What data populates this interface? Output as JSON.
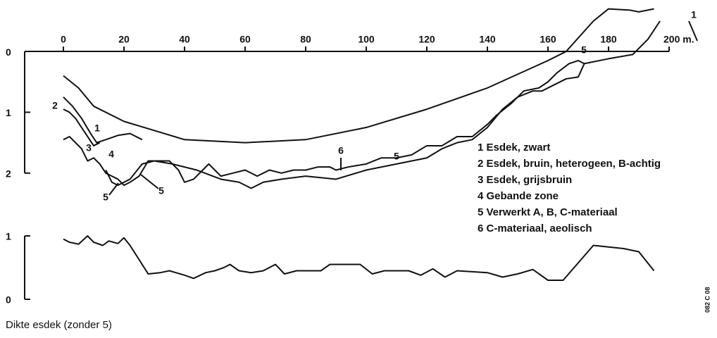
{
  "chart_data": [
    {
      "type": "line",
      "xlim": [
        0,
        200
      ],
      "xticks": [
        0,
        20,
        40,
        60,
        80,
        100,
        120,
        140,
        160,
        180,
        {
          "value": 200,
          "label": "200 m."
        }
      ],
      "ylim": [
        2.28,
        -0.73
      ],
      "yticks": [
        0,
        1,
        2
      ],
      "series": [
        {
          "color": "#111",
          "x": [
            0,
            5,
            10,
            20,
            30,
            40,
            60,
            80,
            100,
            120,
            140,
            160,
            166,
            175,
            180,
            187,
            190,
            195
          ],
          "values": [
            0.4,
            0.6,
            0.9,
            1.15,
            1.3,
            1.45,
            1.5,
            1.45,
            1.25,
            0.95,
            0.6,
            0.15,
            0,
            -0.5,
            -0.7,
            -0.68,
            -0.65,
            -0.7
          ]
        },
        {
          "color": "#111",
          "x": [
            0,
            3,
            6,
            9,
            11,
            14,
            18,
            22,
            26
          ],
          "values": [
            0.75,
            0.9,
            1.1,
            1.35,
            1.5,
            1.45,
            1.38,
            1.35,
            1.45
          ]
        },
        {
          "color": "#111",
          "x": [
            0,
            2,
            4,
            6,
            8,
            10,
            12
          ],
          "values": [
            0.95,
            1.0,
            1.1,
            1.25,
            1.4,
            1.55,
            1.5
          ]
        },
        {
          "color": "#111",
          "x": [
            0,
            2,
            4,
            6,
            8,
            10,
            12,
            14,
            16,
            18,
            20,
            22,
            25,
            28,
            35,
            38,
            40,
            43,
            46,
            48,
            52,
            56,
            60,
            64,
            68,
            72,
            76,
            80,
            84,
            88,
            90,
            94,
            100,
            105,
            110,
            115,
            120,
            125,
            130,
            135,
            140,
            143,
            148,
            152,
            157,
            160,
            163,
            167,
            170,
            172
          ],
          "values": [
            1.45,
            1.4,
            1.5,
            1.6,
            1.8,
            1.75,
            1.85,
            2.0,
            2.05,
            2.1,
            2.2,
            2.15,
            2.05,
            1.8,
            1.8,
            1.95,
            2.15,
            2.1,
            1.95,
            1.85,
            2.05,
            2.0,
            1.95,
            2.05,
            1.95,
            2.0,
            1.95,
            1.95,
            1.9,
            1.9,
            1.95,
            1.9,
            1.85,
            1.75,
            1.75,
            1.7,
            1.55,
            1.55,
            1.4,
            1.4,
            1.2,
            1.05,
            0.85,
            0.65,
            0.6,
            0.5,
            0.35,
            0.2,
            0.15,
            0.2
          ]
        },
        {
          "color": "#111",
          "x": [
            14,
            16,
            18,
            22,
            26,
            30,
            36,
            44,
            52,
            58,
            62,
            66,
            72,
            80,
            90,
            100,
            110,
            120,
            125,
            130,
            135,
            140,
            145,
            150,
            155,
            158,
            162,
            166,
            170,
            172,
            180,
            188,
            193,
            197
          ],
          "values": [
            1.95,
            2.15,
            2.2,
            2.1,
            1.85,
            1.8,
            1.85,
            1.95,
            2.1,
            2.15,
            2.25,
            2.15,
            2.1,
            2.05,
            2.1,
            1.95,
            1.85,
            1.75,
            1.6,
            1.5,
            1.45,
            1.25,
            0.95,
            0.75,
            0.65,
            0.65,
            0.55,
            0.45,
            0.42,
            0.2,
            0.12,
            0.05,
            -0.2,
            -0.5
          ]
        }
      ],
      "annotations": [
        "1",
        "2",
        "3",
        "4",
        "5",
        "5",
        "6",
        "5",
        "5",
        "1"
      ],
      "legend_items": [
        "1  Esdek, zwart",
        "2  Esdek, bruin, heterogeen, B-achtig",
        "3  Esdek, grijsbruin",
        "4  Gebande zone",
        "5  Verwerkt A, B, C-materiaal",
        "6  C-materiaal, aeolisch"
      ]
    },
    {
      "type": "line",
      "title": "Dikte esdek (zonder 5)",
      "xlim": [
        0,
        200
      ],
      "ylim": [
        0,
        1.1
      ],
      "yticks": [
        0,
        1
      ],
      "series": [
        {
          "color": "#111",
          "x": [
            0,
            2,
            5,
            8,
            10,
            13,
            15,
            18,
            20,
            22,
            28,
            32,
            35,
            40,
            43,
            47,
            50,
            53,
            55,
            58,
            62,
            66,
            70,
            73,
            77,
            82,
            85,
            88,
            98,
            102,
            106,
            110,
            114,
            118,
            122,
            126,
            130,
            140,
            145,
            150,
            155,
            160,
            165,
            175,
            185,
            190,
            195
          ],
          "values": [
            0.95,
            0.9,
            0.87,
            1.0,
            0.9,
            0.85,
            0.92,
            0.88,
            0.97,
            0.85,
            0.4,
            0.42,
            0.45,
            0.38,
            0.33,
            0.42,
            0.45,
            0.5,
            0.55,
            0.45,
            0.42,
            0.45,
            0.55,
            0.4,
            0.45,
            0.45,
            0.45,
            0.55,
            0.55,
            0.4,
            0.45,
            0.45,
            0.45,
            0.38,
            0.48,
            0.35,
            0.45,
            0.42,
            0.35,
            0.4,
            0.47,
            0.3,
            0.3,
            0.85,
            0.8,
            0.75,
            0.45
          ]
        }
      ]
    },
    {
      "code": "082 C 08"
    }
  ]
}
